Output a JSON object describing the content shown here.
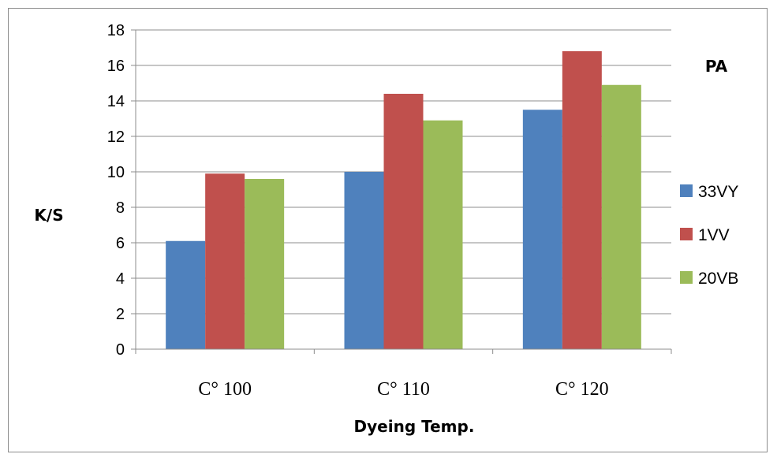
{
  "chart_data": {
    "type": "bar",
    "annotation": "PA",
    "xlabel": "Dyeing Temp.",
    "ylabel": "K/S",
    "ylim": [
      0,
      18
    ],
    "ytick_step": 2,
    "grid": true,
    "legend_position": "right",
    "categories": [
      "C° 100",
      "C° 110",
      "C° 120"
    ],
    "series": [
      {
        "name": "33VY",
        "color": "#4f81bd",
        "values": [
          6.1,
          10.0,
          13.5
        ]
      },
      {
        "name": "1VV",
        "color": "#c0504d",
        "values": [
          9.9,
          14.4,
          16.8
        ]
      },
      {
        "name": "20VB",
        "color": "#9bbb59",
        "values": [
          9.6,
          12.9,
          14.9
        ]
      }
    ]
  }
}
